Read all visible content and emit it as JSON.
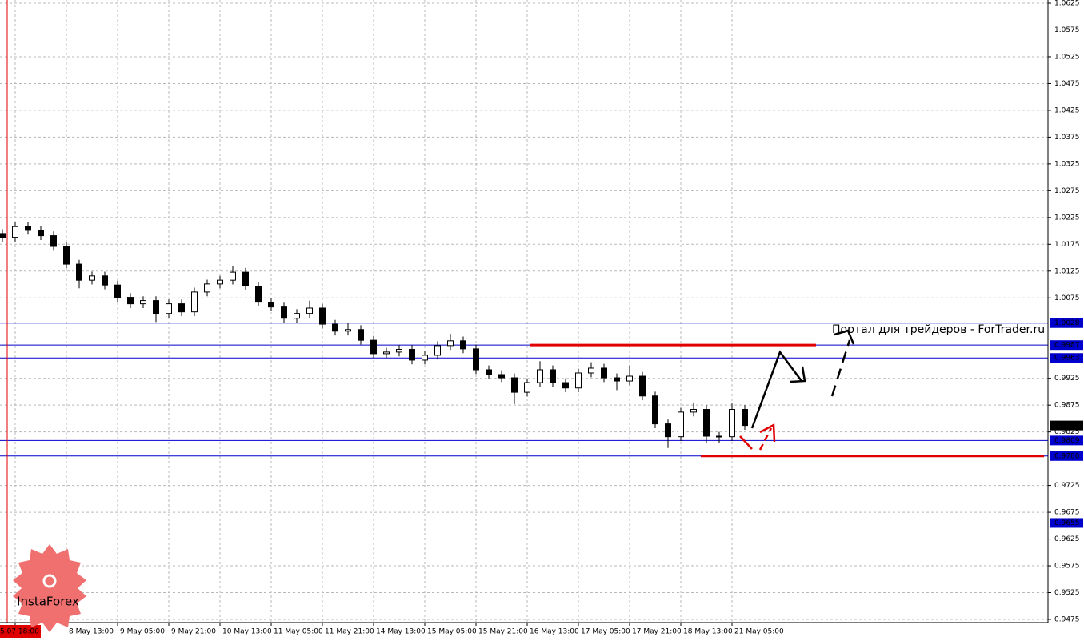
{
  "chart_data": {
    "type": "candlestick",
    "watermark": "Портал для трейдеров - ForTrader.ru",
    "logo": "InstaForex",
    "ylim": [
      0.9469,
      1.0631
    ],
    "yticks": [
      1.0625,
      1.0575,
      1.0525,
      1.0475,
      1.0425,
      1.0375,
      1.0325,
      1.0275,
      1.0225,
      1.0175,
      1.0125,
      1.0075,
      0.9925,
      0.9875,
      0.9825,
      0.9725,
      0.9675,
      0.9625,
      0.9575,
      0.9525,
      0.9475
    ],
    "xlim": [
      -0.1875,
      81.6875
    ],
    "xticks": [
      {
        "value": 1,
        "label": "5.07 18:00"
      },
      {
        "value": 5,
        "label": "8 May 13:00"
      },
      {
        "value": 9,
        "label": "9 May 05:00"
      },
      {
        "value": 13,
        "label": "9 May 21:00"
      },
      {
        "value": 17,
        "label": "10 May 13:00"
      },
      {
        "value": 21,
        "label": "11 May 05:00"
      },
      {
        "value": 25,
        "label": "11 May 21:00"
      },
      {
        "value": 29,
        "label": "14 May 13:00"
      },
      {
        "value": 33,
        "label": "15 May 05:00"
      },
      {
        "value": 37,
        "label": "15 May 21:00"
      },
      {
        "value": 41,
        "label": "16 May 13:00"
      },
      {
        "value": 45,
        "label": "17 May 05:00"
      },
      {
        "value": 49,
        "label": "17 May 21:00"
      },
      {
        "value": 53,
        "label": "18 May 13:00"
      },
      {
        "value": 57,
        "label": "21 May 05:00"
      }
    ],
    "grid": true,
    "open": [
      1.0195,
      1.0188,
      1.0208,
      1.0201,
      1.0191,
      1.0171,
      1.0138,
      1.0108,
      1.0116,
      1.0099,
      1.0076,
      1.0064,
      1.007,
      1.0046,
      1.0064,
      1.0049,
      1.0086,
      1.0101,
      1.0108,
      1.0123,
      1.0097,
      1.0067,
      1.0058,
      1.0037,
      1.0046,
      1.0056,
      1.0026,
      1.0013,
      1.0016,
      0.9996,
      0.9971,
      0.9974,
      0.9979,
      0.9959,
      0.9968,
      0.9986,
      0.9995,
      0.998,
      0.9941,
      0.9932,
      0.9926,
      0.9899,
      0.9917,
      0.9941,
      0.9917,
      0.9907,
      0.9935,
      0.9944,
      0.9926,
      0.992,
      0.9929,
      0.9892,
      0.984,
      0.9816,
      0.9862,
      0.9867,
      0.9817,
      0.9816,
      0.9867
    ],
    "high": [
      1.0203,
      1.0216,
      1.0216,
      1.0209,
      1.0199,
      1.0179,
      1.0146,
      1.0124,
      1.0124,
      1.0107,
      1.0084,
      1.0078,
      1.0078,
      1.0072,
      1.0072,
      1.0094,
      1.0109,
      1.0116,
      1.0135,
      1.0131,
      1.0105,
      1.0075,
      1.0066,
      1.0054,
      1.007,
      1.0064,
      1.0034,
      1.0028,
      1.0024,
      1.0004,
      0.9982,
      0.9987,
      0.9987,
      0.9976,
      0.9994,
      1.0008,
      1.0003,
      0.9988,
      0.9949,
      0.994,
      0.9934,
      0.9925,
      0.9957,
      0.9949,
      0.9925,
      0.9943,
      0.9955,
      0.9952,
      0.9934,
      0.9949,
      0.9937,
      0.99,
      0.9848,
      0.987,
      0.988,
      0.9875,
      0.9825,
      0.9878,
      0.9875
    ],
    "low": [
      1.018,
      1.018,
      1.0193,
      1.0183,
      1.0163,
      1.013,
      1.0093,
      1.01,
      1.0091,
      1.0068,
      1.0056,
      1.0056,
      1.003,
      1.0038,
      1.0041,
      1.0041,
      1.0078,
      1.0093,
      1.01,
      1.0089,
      1.0059,
      1.005,
      1.0029,
      1.0029,
      1.0038,
      1.0018,
      1.0005,
      1.0005,
      0.9988,
      0.9963,
      0.9963,
      0.9966,
      0.9951,
      0.9951,
      0.996,
      0.9978,
      0.9972,
      0.9933,
      0.9924,
      0.9918,
      0.9877,
      0.9891,
      0.9909,
      0.9909,
      0.9899,
      0.9899,
      0.9927,
      0.9918,
      0.9903,
      0.9912,
      0.9884,
      0.9832,
      0.9795,
      0.9808,
      0.9854,
      0.9805,
      0.9805,
      0.9808,
      0.9829
    ],
    "close": [
      1.0188,
      1.0208,
      1.0201,
      1.0191,
      1.0171,
      1.0138,
      1.0108,
      1.0116,
      1.0099,
      1.0076,
      1.0064,
      1.007,
      1.0046,
      1.0064,
      1.0049,
      1.0086,
      1.0101,
      1.0108,
      1.0123,
      1.0097,
      1.0067,
      1.0058,
      1.0037,
      1.0046,
      1.0056,
      1.0026,
      1.0013,
      1.0016,
      0.9996,
      0.9971,
      0.9974,
      0.9979,
      0.9959,
      0.9968,
      0.9986,
      0.9995,
      0.998,
      0.9941,
      0.9932,
      0.9926,
      0.9899,
      0.9917,
      0.9941,
      0.9917,
      0.9907,
      0.9935,
      0.9944,
      0.9926,
      0.992,
      0.9929,
      0.9892,
      0.984,
      0.9816,
      0.9862,
      0.9867,
      0.9817,
      0.9816,
      0.9867,
      0.9837
    ],
    "hlines": [
      1.0028,
      0.9987,
      0.9963,
      0.9809,
      {
        "value": 0.978,
        "label": "0.9780"
      },
      0.9655
    ],
    "hline_color": "#0000cc",
    "last_price": 0.9837,
    "red_lines": [
      {
        "y": 0.9987,
        "x": [
          41.19,
          63.56
        ]
      },
      {
        "y": 0.978,
        "x": [
          54.56,
          81.38
        ]
      }
    ],
    "red_line_color": "#e00000"
  }
}
